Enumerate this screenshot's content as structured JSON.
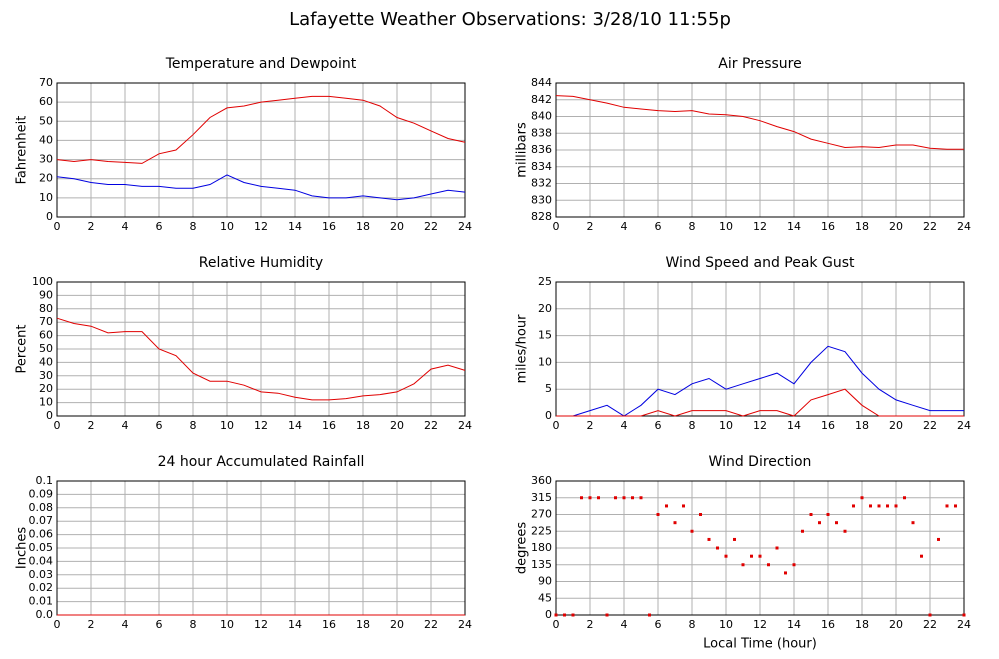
{
  "title": "Lafayette Weather Observations: 3/28/10 11:55p",
  "chart_data": [
    {
      "type": "line",
      "title": "Temperature and Dewpoint",
      "y_label": "Fahrenheit",
      "x": [
        0,
        1,
        2,
        3,
        4,
        5,
        6,
        7,
        8,
        9,
        10,
        11,
        12,
        13,
        14,
        15,
        16,
        17,
        18,
        19,
        20,
        21,
        22,
        23,
        24
      ],
      "series": [
        {
          "color": "#e00000",
          "values": [
            30,
            29,
            30,
            29,
            28.5,
            28,
            33,
            35,
            43,
            52,
            57,
            58,
            60,
            61,
            62,
            63,
            63,
            62,
            61,
            58,
            52,
            49,
            45,
            41,
            39
          ]
        },
        {
          "color": "#0000e0",
          "values": [
            21,
            20,
            18,
            17,
            17,
            16,
            16,
            15,
            15,
            17,
            22,
            18,
            16,
            15,
            14,
            11,
            10,
            10,
            11,
            10,
            9,
            10,
            12,
            14,
            13
          ]
        }
      ],
      "xlim": [
        0,
        24
      ],
      "xticks": [
        0,
        2,
        4,
        6,
        8,
        10,
        12,
        14,
        16,
        18,
        20,
        22,
        24
      ],
      "ylim": [
        0,
        70
      ],
      "yticks": [
        0,
        10,
        20,
        30,
        40,
        50,
        60,
        70
      ],
      "grid": true
    },
    {
      "type": "line",
      "title": "Air Pressure",
      "y_label": "millibars",
      "x": [
        0,
        1,
        2,
        3,
        4,
        5,
        6,
        7,
        8,
        9,
        10,
        11,
        12,
        13,
        14,
        15,
        16,
        17,
        18,
        19,
        20,
        21,
        22,
        23,
        24
      ],
      "series": [
        {
          "color": "#e00000",
          "values": [
            842.5,
            842.4,
            842,
            841.6,
            841.1,
            840.9,
            840.7,
            840.6,
            840.7,
            840.3,
            840.2,
            840,
            839.5,
            838.8,
            838.2,
            837.3,
            836.8,
            836.3,
            836.4,
            836.3,
            836.6,
            836.6,
            836.2,
            836.1,
            836.1
          ]
        }
      ],
      "xlim": [
        0,
        24
      ],
      "xticks": [
        0,
        2,
        4,
        6,
        8,
        10,
        12,
        14,
        16,
        18,
        20,
        22,
        24
      ],
      "ylim": [
        828,
        844
      ],
      "yticks": [
        828,
        830,
        832,
        834,
        836,
        838,
        840,
        842,
        844
      ],
      "grid": true
    },
    {
      "type": "line",
      "title": "Relative Humidity",
      "y_label": "Percent",
      "x": [
        0,
        1,
        2,
        3,
        4,
        5,
        6,
        7,
        8,
        9,
        10,
        11,
        12,
        13,
        14,
        15,
        16,
        17,
        18,
        19,
        20,
        21,
        22,
        23,
        24
      ],
      "series": [
        {
          "color": "#e00000",
          "values": [
            73,
            69,
            67,
            62,
            63,
            63,
            50,
            45,
            32,
            26,
            26,
            23,
            18,
            17,
            14,
            12,
            12,
            13,
            15,
            16,
            18,
            24,
            35,
            38,
            34
          ]
        }
      ],
      "xlim": [
        0,
        24
      ],
      "xticks": [
        0,
        2,
        4,
        6,
        8,
        10,
        12,
        14,
        16,
        18,
        20,
        22,
        24
      ],
      "ylim": [
        0,
        100
      ],
      "yticks": [
        0,
        10,
        20,
        30,
        40,
        50,
        60,
        70,
        80,
        90,
        100
      ],
      "grid": true
    },
    {
      "type": "line",
      "title": "Wind Speed and Peak Gust",
      "y_label": "miles/hour",
      "x": [
        0,
        1,
        2,
        3,
        4,
        5,
        6,
        7,
        8,
        9,
        10,
        11,
        12,
        13,
        14,
        15,
        16,
        17,
        18,
        19,
        20,
        21,
        22,
        23,
        24
      ],
      "series": [
        {
          "color": "#0000e0",
          "values": [
            0,
            0,
            1,
            2,
            0,
            2,
            5,
            4,
            6,
            7,
            5,
            6,
            7,
            8,
            6,
            10,
            13,
            12,
            8,
            5,
            3,
            2,
            1,
            1,
            1
          ]
        },
        {
          "color": "#e00000",
          "values": [
            0,
            0,
            0,
            0,
            0,
            0,
            1,
            0,
            1,
            1,
            1,
            0,
            1,
            1,
            0,
            3,
            4,
            5,
            2,
            0,
            0,
            0,
            0,
            0,
            0
          ]
        }
      ],
      "xlim": [
        0,
        24
      ],
      "xticks": [
        0,
        2,
        4,
        6,
        8,
        10,
        12,
        14,
        16,
        18,
        20,
        22,
        24
      ],
      "ylim": [
        0,
        25
      ],
      "yticks": [
        0,
        5,
        10,
        15,
        20,
        25
      ],
      "grid": true
    },
    {
      "type": "line",
      "title": "24 hour Accumulated Rainfall",
      "y_label": "Inches",
      "x": [
        0,
        1,
        2,
        3,
        4,
        5,
        6,
        7,
        8,
        9,
        10,
        11,
        12,
        13,
        14,
        15,
        16,
        17,
        18,
        19,
        20,
        21,
        22,
        23,
        24
      ],
      "series": [
        {
          "color": "#e00000",
          "values": [
            0,
            0,
            0,
            0,
            0,
            0,
            0,
            0,
            0,
            0,
            0,
            0,
            0,
            0,
            0,
            0,
            0,
            0,
            0,
            0,
            0,
            0,
            0,
            0,
            0
          ]
        }
      ],
      "xlim": [
        0,
        24
      ],
      "xticks": [
        0,
        2,
        4,
        6,
        8,
        10,
        12,
        14,
        16,
        18,
        20,
        22,
        24
      ],
      "ylim": [
        0,
        0.1
      ],
      "yticks": [
        {
          "value": 0,
          "label": "0.0"
        },
        0.01,
        0.02,
        0.03,
        0.04,
        0.05,
        0.06,
        0.07,
        0.08,
        0.09,
        0.1
      ],
      "grid": true
    },
    {
      "type": "scatter",
      "title": "Wind Direction",
      "y_label": "degrees",
      "x_label": "Local Time (hour)",
      "x": [
        0,
        0.5,
        1,
        1.5,
        2,
        2.5,
        3,
        3.5,
        4,
        4.5,
        5,
        5.5,
        6,
        6.5,
        7,
        7.5,
        8,
        8.5,
        9,
        9.5,
        10,
        10.5,
        11,
        11.5,
        12,
        12.5,
        13,
        13.5,
        14,
        14.5,
        15,
        15.5,
        16,
        16.5,
        17,
        17.5,
        18,
        18.5,
        19,
        19.5,
        20,
        20.5,
        21,
        21.5,
        22,
        22.5,
        23,
        23.5,
        24
      ],
      "values": [
        0,
        0,
        0,
        315,
        315,
        315,
        0,
        315,
        315,
        315,
        315,
        0,
        270,
        293,
        248,
        293,
        225,
        270,
        203,
        180,
        158,
        203,
        135,
        158,
        158,
        135,
        180,
        113,
        135,
        225,
        270,
        248,
        270,
        248,
        225,
        293,
        315,
        293,
        293,
        293,
        293,
        315,
        248,
        158,
        0,
        203,
        293,
        293,
        0
      ],
      "color": "#e00000",
      "xlim": [
        0,
        24
      ],
      "xticks": [
        0,
        2,
        4,
        6,
        8,
        10,
        12,
        14,
        16,
        18,
        20,
        22,
        24
      ],
      "ylim": [
        0,
        360
      ],
      "yticks": [
        0,
        45,
        90,
        135,
        180,
        225,
        270,
        315,
        360
      ],
      "grid": true
    }
  ]
}
